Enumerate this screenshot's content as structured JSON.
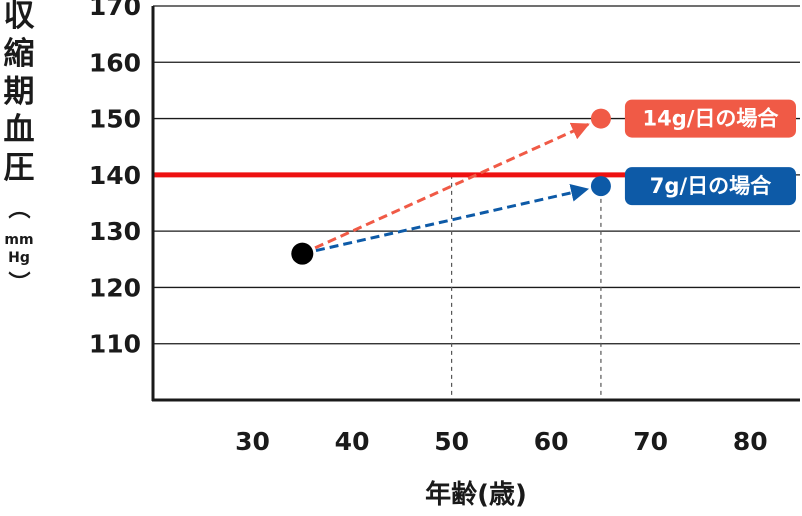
{
  "chart_data": {
    "type": "line",
    "xlabel": "年齢(歳)",
    "ylabel": "収縮期血圧",
    "ylabel_paren": "（",
    "ylabel_paren_close": "）",
    "yunit_line1": "mm",
    "yunit_line2": "Hg",
    "xlim": [
      20,
      85
    ],
    "ylim": [
      100,
      170
    ],
    "x_ticks": [
      30,
      40,
      50,
      60,
      70,
      80
    ],
    "y_ticks": [
      110,
      120,
      130,
      140,
      150,
      160,
      170
    ],
    "grid": true,
    "start_point": {
      "x": 35,
      "y": 126
    },
    "series": [
      {
        "name": "14g/日の場合",
        "color": "#f05a46",
        "points": [
          {
            "x": 35,
            "y": 126
          },
          {
            "x": 65,
            "y": 150
          }
        ]
      },
      {
        "name": "7g/日の場合",
        "color": "#0d5aa7",
        "points": [
          {
            "x": 35,
            "y": 126
          },
          {
            "x": 65,
            "y": 138
          }
        ]
      }
    ],
    "reference_line": {
      "y": 140,
      "color": "#ee1111"
    },
    "guide_lines_x": [
      50,
      65
    ]
  }
}
